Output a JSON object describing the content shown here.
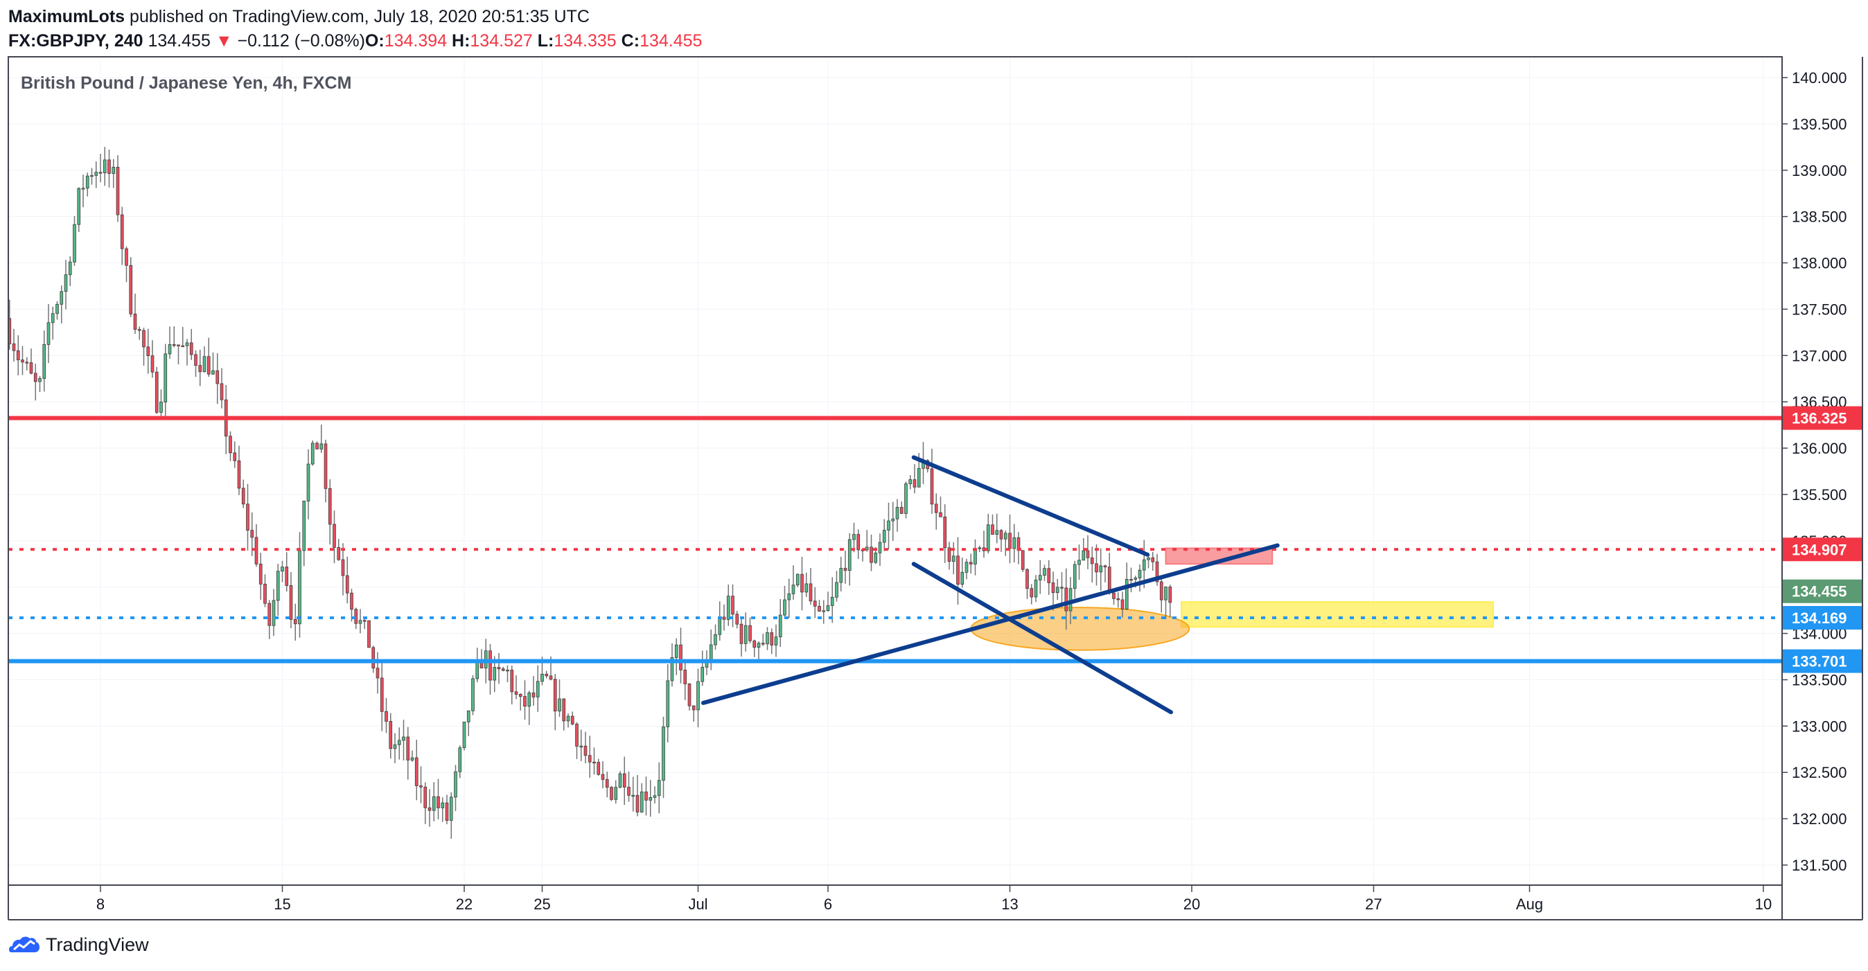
{
  "header": {
    "author": "MaximumLots",
    "published": " published on TradingView.com, July 18, 2020 20:51:35 UTC"
  },
  "symbol_line": {
    "symbol": "FX:GBPJPY, 240",
    "last": "134.455",
    "arrow": "▼",
    "change": "−0.112 (−0.08%)",
    "o_label": "O:",
    "o": "134.394",
    "h_label": "H:",
    "h": "134.527",
    "l_label": "L:",
    "l": "134.335",
    "c_label": "C:",
    "c": "134.455"
  },
  "footer": {
    "brand": "TradingView"
  },
  "chart_data": {
    "type": "candlestick",
    "title": "British Pound / Japanese Yen, 4h, FXCM",
    "ylim": [
      131.25,
      140.1
    ],
    "y_ticks": [
      131.5,
      132.0,
      132.5,
      133.0,
      133.5,
      134.0,
      134.5,
      135.0,
      135.5,
      136.0,
      136.5,
      137.0,
      137.5,
      138.0,
      138.5,
      139.0,
      139.5,
      140.0
    ],
    "x_ticks": [
      {
        "label": "8",
        "day": 8
      },
      {
        "label": "15",
        "day": 15
      },
      {
        "label": "22",
        "day": 22
      },
      {
        "label": "25",
        "day": 25
      },
      {
        "label": "Jul",
        "day": 31
      },
      {
        "label": "6",
        "day": 36
      },
      {
        "label": "13",
        "day": 43
      },
      {
        "label": "20",
        "day": 50
      },
      {
        "label": "27",
        "day": 57
      },
      {
        "label": "Aug",
        "day": 63
      },
      {
        "label": "10",
        "day": 72
      }
    ],
    "candle_waypoints": [
      [
        4.5,
        137.4
      ],
      [
        5.0,
        137.0
      ],
      [
        5.8,
        136.6
      ],
      [
        6.2,
        137.4
      ],
      [
        6.8,
        137.8
      ],
      [
        7.4,
        138.8
      ],
      [
        7.8,
        139.0
      ],
      [
        8.2,
        139.05
      ],
      [
        8.7,
        138.9
      ],
      [
        9.0,
        138.2
      ],
      [
        9.3,
        137.6
      ],
      [
        9.9,
        137.0
      ],
      [
        10.4,
        136.45
      ],
      [
        10.8,
        137.2
      ],
      [
        11.6,
        137.0
      ],
      [
        12.4,
        136.9
      ],
      [
        13.0,
        136.2
      ],
      [
        13.6,
        135.4
      ],
      [
        14.2,
        134.8
      ],
      [
        14.6,
        134.0
      ],
      [
        15.2,
        134.9
      ],
      [
        15.6,
        134.0
      ],
      [
        15.9,
        135.0
      ],
      [
        16.3,
        136.2
      ],
      [
        16.7,
        136.0
      ],
      [
        17.1,
        135.0
      ],
      [
        17.5,
        134.7
      ],
      [
        18.0,
        134.2
      ],
      [
        18.5,
        133.9
      ],
      [
        18.9,
        133.3
      ],
      [
        19.3,
        132.8
      ],
      [
        19.8,
        132.8
      ],
      [
        20.2,
        132.5
      ],
      [
        20.6,
        132.2
      ],
      [
        21.0,
        132.2
      ],
      [
        21.5,
        132.0
      ],
      [
        21.9,
        132.5
      ],
      [
        22.4,
        133.3
      ],
      [
        22.9,
        133.8
      ],
      [
        23.3,
        133.5
      ],
      [
        23.8,
        133.6
      ],
      [
        24.3,
        133.2
      ],
      [
        24.8,
        133.3
      ],
      [
        25.3,
        133.5
      ],
      [
        25.8,
        133.2
      ],
      [
        26.3,
        133.05
      ],
      [
        26.8,
        132.7
      ],
      [
        27.3,
        132.4
      ],
      [
        27.8,
        132.3
      ],
      [
        28.3,
        132.5
      ],
      [
        28.8,
        132.2
      ],
      [
        29.2,
        132.3
      ],
      [
        29.6,
        132.3
      ],
      [
        30.0,
        133.4
      ],
      [
        30.4,
        133.9
      ],
      [
        30.8,
        133.1
      ],
      [
        31.3,
        133.5
      ],
      [
        31.8,
        134.0
      ],
      [
        32.3,
        134.3
      ],
      [
        32.8,
        134.0
      ],
      [
        33.3,
        133.95
      ],
      [
        33.8,
        133.9
      ],
      [
        34.3,
        134.1
      ],
      [
        34.8,
        134.5
      ],
      [
        35.3,
        134.5
      ],
      [
        35.8,
        134.1
      ],
      [
        36.3,
        134.3
      ],
      [
        36.8,
        134.8
      ],
      [
        37.3,
        135.0
      ],
      [
        37.8,
        134.8
      ],
      [
        38.3,
        135.1
      ],
      [
        38.8,
        135.3
      ],
      [
        39.3,
        135.6
      ],
      [
        39.8,
        135.8
      ],
      [
        40.2,
        135.5
      ],
      [
        40.7,
        135.0
      ],
      [
        41.2,
        134.6
      ],
      [
        41.7,
        134.7
      ],
      [
        42.2,
        135.0
      ],
      [
        42.6,
        135.1
      ],
      [
        43.1,
        135.1
      ],
      [
        43.5,
        134.8
      ],
      [
        44.0,
        134.5
      ],
      [
        44.5,
        134.6
      ],
      [
        45.0,
        134.4
      ],
      [
        45.4,
        134.3
      ],
      [
        45.8,
        134.8
      ],
      [
        46.3,
        134.9
      ],
      [
        46.7,
        134.7
      ],
      [
        47.1,
        134.4
      ],
      [
        47.5,
        134.4
      ],
      [
        48.0,
        134.7
      ],
      [
        48.3,
        134.9
      ],
      [
        48.7,
        134.7
      ],
      [
        49.0,
        134.5
      ],
      [
        49.2,
        134.45
      ]
    ],
    "horizontal_levels": [
      {
        "value": 136.325,
        "label": "136.325",
        "color": "#f23645",
        "style": "solid"
      },
      {
        "value": 134.907,
        "label": "134.907",
        "color": "#f23645",
        "style": "dotted"
      },
      {
        "value": 134.169,
        "label": "134.169",
        "color": "#2196f3",
        "style": "dotted"
      },
      {
        "value": 133.701,
        "label": "133.701",
        "color": "#2196f3",
        "style": "solid"
      }
    ],
    "last_price": {
      "value": 134.455,
      "label": "134.455",
      "color": "#5b9a72"
    },
    "trendlines": [
      {
        "from": [
          31.2,
          133.25
        ],
        "to": [
          53.3,
          134.95
        ],
        "color": "#0d3d8e"
      },
      {
        "from": [
          39.3,
          135.9
        ],
        "to": [
          48.3,
          134.85
        ],
        "color": "#0d3d8e"
      },
      {
        "from": [
          39.3,
          134.75
        ],
        "to": [
          49.2,
          133.15
        ],
        "color": "#0d3d8e"
      }
    ],
    "zones": [
      {
        "from_day": 49.0,
        "to_day": 53.1,
        "low": 134.75,
        "high": 134.92,
        "color": "#f77c80"
      },
      {
        "from_day": 49.6,
        "to_day": 61.6,
        "low": 134.07,
        "high": 134.34,
        "color": "#ffee55"
      }
    ],
    "ellipse": {
      "center_day": 45.7,
      "center_value": 134.05,
      "radius_days": 4.2,
      "radius_value": 0.23,
      "color": "#f7a823"
    },
    "colors": {
      "up": "#53b987",
      "down": "#eb4d5c",
      "wick": "#737375",
      "grid": "#f0f3fa"
    }
  }
}
